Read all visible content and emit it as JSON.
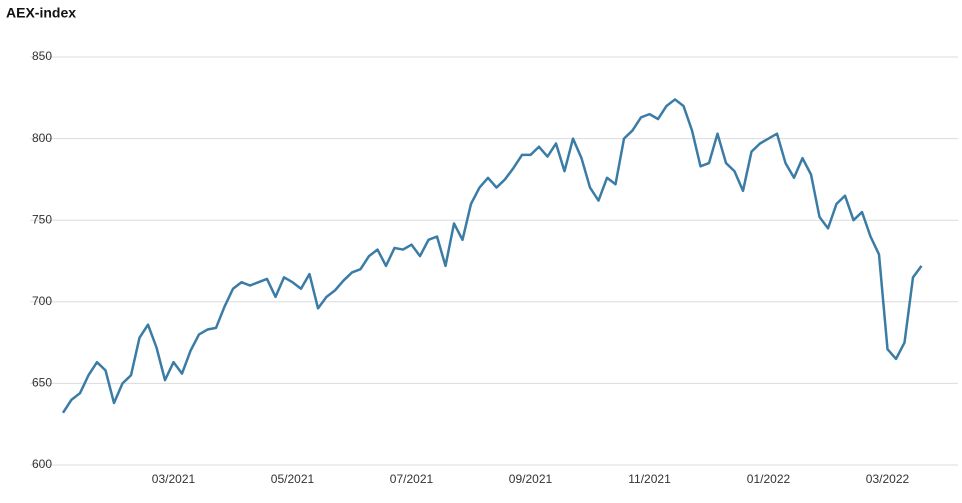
{
  "chart_data": {
    "type": "line",
    "title": "AEX-index",
    "categories": [
      null,
      null,
      null,
      null,
      null,
      null,
      null,
      null,
      null,
      null,
      null,
      null,
      null,
      "03/2021",
      null,
      null,
      null,
      null,
      null,
      null,
      null,
      null,
      null,
      null,
      null,
      null,
      null,
      "05/2021",
      null,
      null,
      null,
      null,
      null,
      null,
      null,
      null,
      null,
      null,
      null,
      null,
      null,
      "07/2021",
      null,
      null,
      null,
      null,
      null,
      null,
      null,
      null,
      null,
      null,
      null,
      null,
      null,
      "09/2021",
      null,
      null,
      null,
      null,
      null,
      null,
      null,
      null,
      null,
      null,
      null,
      null,
      null,
      "11/2021",
      null,
      null,
      null,
      null,
      null,
      null,
      null,
      null,
      null,
      null,
      null,
      null,
      null,
      "01/2022",
      null,
      null,
      null,
      null,
      null,
      null,
      null,
      null,
      null,
      null,
      null,
      null,
      null,
      "03/2022",
      null,
      null,
      null,
      null
    ],
    "values": [
      632,
      640,
      644,
      655,
      663,
      658,
      638,
      650,
      655,
      678,
      686,
      672,
      652,
      663,
      656,
      670,
      680,
      683,
      684,
      697,
      708,
      712,
      710,
      712,
      714,
      703,
      715,
      712,
      708,
      717,
      696,
      703,
      707,
      713,
      718,
      720,
      728,
      732,
      722,
      733,
      732,
      735,
      728,
      738,
      740,
      722,
      748,
      738,
      760,
      770,
      776,
      770,
      775,
      782,
      790,
      790,
      795,
      789,
      797,
      780,
      800,
      788,
      770,
      762,
      776,
      772,
      800,
      805,
      813,
      815,
      812,
      820,
      824,
      820,
      805,
      783,
      785,
      803,
      785,
      780,
      768,
      792,
      797,
      800,
      803,
      785,
      776,
      788,
      778,
      752,
      745,
      760,
      765,
      750,
      755,
      740,
      729,
      671,
      665,
      675,
      715,
      722
    ],
    "color": "#3a7ca5",
    "ylim": [
      600,
      850
    ],
    "yticks": [
      600,
      650,
      700,
      750,
      800,
      850
    ],
    "grid": true
  }
}
